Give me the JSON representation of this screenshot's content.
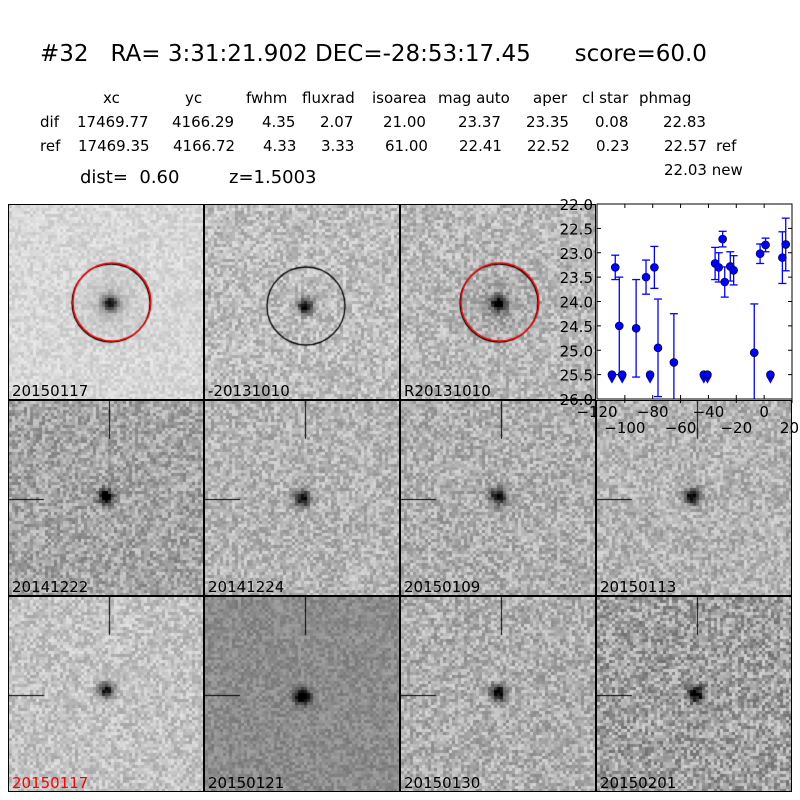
{
  "header": {
    "title": "#32   RA= 3:31:21.902 DEC=-28:53:17.45      score=60.0",
    "columns": [
      "xc",
      "yc",
      "fwhm",
      "fluxrad",
      "isoarea",
      "mag auto",
      "aper",
      "cl star",
      "phmag"
    ],
    "rows": [
      {
        "label": "dif",
        "values": [
          "17469.77",
          "4166.29",
          "4.35",
          "2.07",
          "21.00",
          "23.37",
          "23.35",
          "0.08",
          "22.83"
        ],
        "suffix": ""
      },
      {
        "label": "ref",
        "values": [
          "17469.35",
          "4166.72",
          "4.33",
          "3.33",
          "61.00",
          "22.41",
          "22.52",
          "0.23",
          "22.57"
        ],
        "suffix": "ref"
      }
    ],
    "new_mag": "22.03 new",
    "dist": "dist=  0.60",
    "z": "z=1.5003"
  },
  "panels": [
    {
      "label": "20150117",
      "circle": [
        "black",
        "red"
      ],
      "color": "#000000"
    },
    {
      "label": "-20131010",
      "circle": [
        "black"
      ],
      "color": "#000000"
    },
    {
      "label": "R20131010",
      "circle": [
        "black",
        "red"
      ],
      "color": "#000000"
    },
    {
      "label": "20141222",
      "crosshair": true,
      "color": "#000000"
    },
    {
      "label": "20141224",
      "crosshair": true,
      "color": "#000000"
    },
    {
      "label": "20150109",
      "crosshair": true,
      "color": "#000000"
    },
    {
      "label": "20150113",
      "crosshair": true,
      "color": "#000000"
    },
    {
      "label": "20150117",
      "crosshair": true,
      "color": "#ff0000"
    },
    {
      "label": "20150121",
      "crosshair": true,
      "color": "#000000"
    },
    {
      "label": "20150130",
      "crosshair": true,
      "color": "#000000"
    },
    {
      "label": "20150201",
      "crosshair": true,
      "color": "#000000"
    }
  ],
  "chart_data": {
    "type": "scatter",
    "title": "",
    "xlabel": "",
    "ylabel": "",
    "xlim": [
      -120,
      20
    ],
    "ylim": [
      26.0,
      22.0
    ],
    "y_inverted": true,
    "xticks": [
      "-120",
      "-100",
      "-80",
      "-60",
      "-40",
      "-20",
      "0",
      "20"
    ],
    "yticks": [
      "22.0",
      "22.5",
      "23.0",
      "23.5",
      "24.0",
      "24.5",
      "25.0",
      "25.5",
      "26.0"
    ],
    "grid": false,
    "marker_color": "#0000ff",
    "points": [
      {
        "x": -109.3,
        "y": 25.5,
        "upper_limit": true
      },
      {
        "x": -106.9,
        "y": 23.3,
        "err": 0.25
      },
      {
        "x": -104.0,
        "y": 24.5,
        "err": 1.0
      },
      {
        "x": -101.9,
        "y": 25.5,
        "upper_limit": true
      },
      {
        "x": -91.9,
        "y": 24.55,
        "err": 1.0
      },
      {
        "x": -84.8,
        "y": 23.5,
        "err": 0.35
      },
      {
        "x": -81.9,
        "y": 25.5,
        "upper_limit": true
      },
      {
        "x": -78.8,
        "y": 23.3,
        "err": 0.43
      },
      {
        "x": -76.2,
        "y": 24.95,
        "err": 1.0
      },
      {
        "x": -64.8,
        "y": 25.25,
        "err": 1.0
      },
      {
        "x": -43.3,
        "y": 25.5,
        "upper_limit": true
      },
      {
        "x": -40.7,
        "y": 25.5,
        "upper_limit": true
      },
      {
        "x": -35.2,
        "y": 23.22,
        "err": 0.33
      },
      {
        "x": -32.6,
        "y": 23.3,
        "err": 0.3
      },
      {
        "x": -29.8,
        "y": 22.72,
        "err": 0.16
      },
      {
        "x": -28.3,
        "y": 23.6,
        "err": 0.31
      },
      {
        "x": -24.3,
        "y": 23.28,
        "err": 0.3
      },
      {
        "x": -21.9,
        "y": 23.36,
        "err": 0.3
      },
      {
        "x": -7.1,
        "y": 25.05,
        "err": 1.0
      },
      {
        "x": -2.9,
        "y": 23.02,
        "err": 0.2
      },
      {
        "x": 1.0,
        "y": 22.84,
        "err": 0.14
      },
      {
        "x": 4.5,
        "y": 25.5,
        "upper_limit": true
      },
      {
        "x": 13.1,
        "y": 23.1,
        "err": 0.53
      },
      {
        "x": 15.5,
        "y": 22.83,
        "err": 0.54
      }
    ]
  }
}
